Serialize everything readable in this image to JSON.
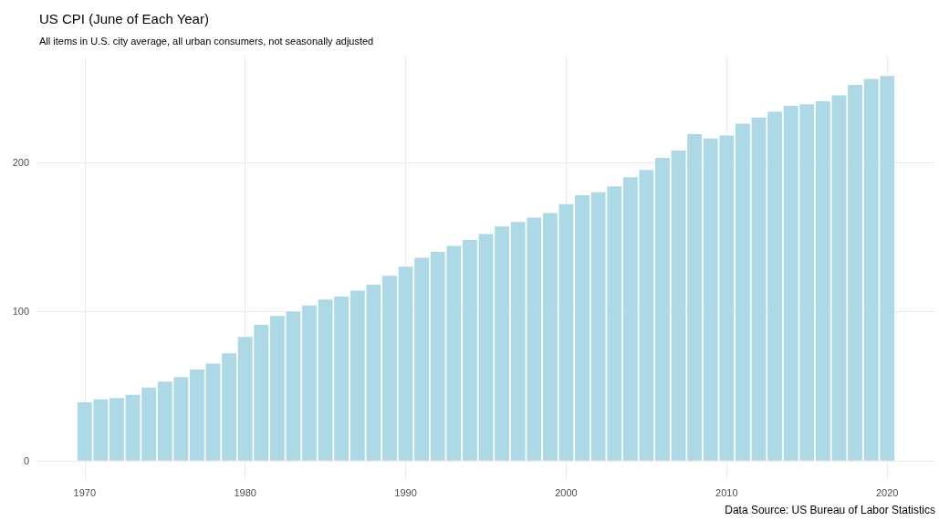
{
  "chart_data": {
    "type": "bar",
    "title": "US CPI (June of Each Year)",
    "subtitle": "All items in U.S. city average, all urban consumers, not seasonally adjusted",
    "annotations": [
      "Data Source: US Bureau of Labor Statistics"
    ],
    "x": [
      1970,
      1971,
      1972,
      1973,
      1974,
      1975,
      1976,
      1977,
      1978,
      1979,
      1980,
      1981,
      1982,
      1983,
      1984,
      1985,
      1986,
      1987,
      1988,
      1989,
      1990,
      1991,
      1992,
      1993,
      1994,
      1995,
      1996,
      1997,
      1998,
      1999,
      2000,
      2001,
      2002,
      2003,
      2004,
      2005,
      2006,
      2007,
      2008,
      2009,
      2010,
      2011,
      2012,
      2013,
      2014,
      2015,
      2016,
      2017,
      2018,
      2019,
      2020
    ],
    "values": [
      39,
      41,
      42,
      44,
      49,
      53,
      56,
      61,
      65,
      72,
      83,
      91,
      97,
      100,
      104,
      108,
      110,
      114,
      118,
      124,
      130,
      136,
      140,
      144,
      148,
      152,
      157,
      160,
      163,
      166,
      172,
      178,
      180,
      184,
      190,
      195,
      203,
      208,
      219,
      216,
      218,
      226,
      230,
      234,
      238,
      239,
      241,
      245,
      252,
      256,
      258
    ],
    "color": "#add8e6",
    "xlim": [
      1967,
      2023
    ],
    "xticks": [
      1970,
      1980,
      1990,
      2000,
      2010,
      2020
    ],
    "ylim": [
      -13,
      271
    ],
    "yticks": [
      0,
      100,
      200
    ],
    "grid": true
  }
}
